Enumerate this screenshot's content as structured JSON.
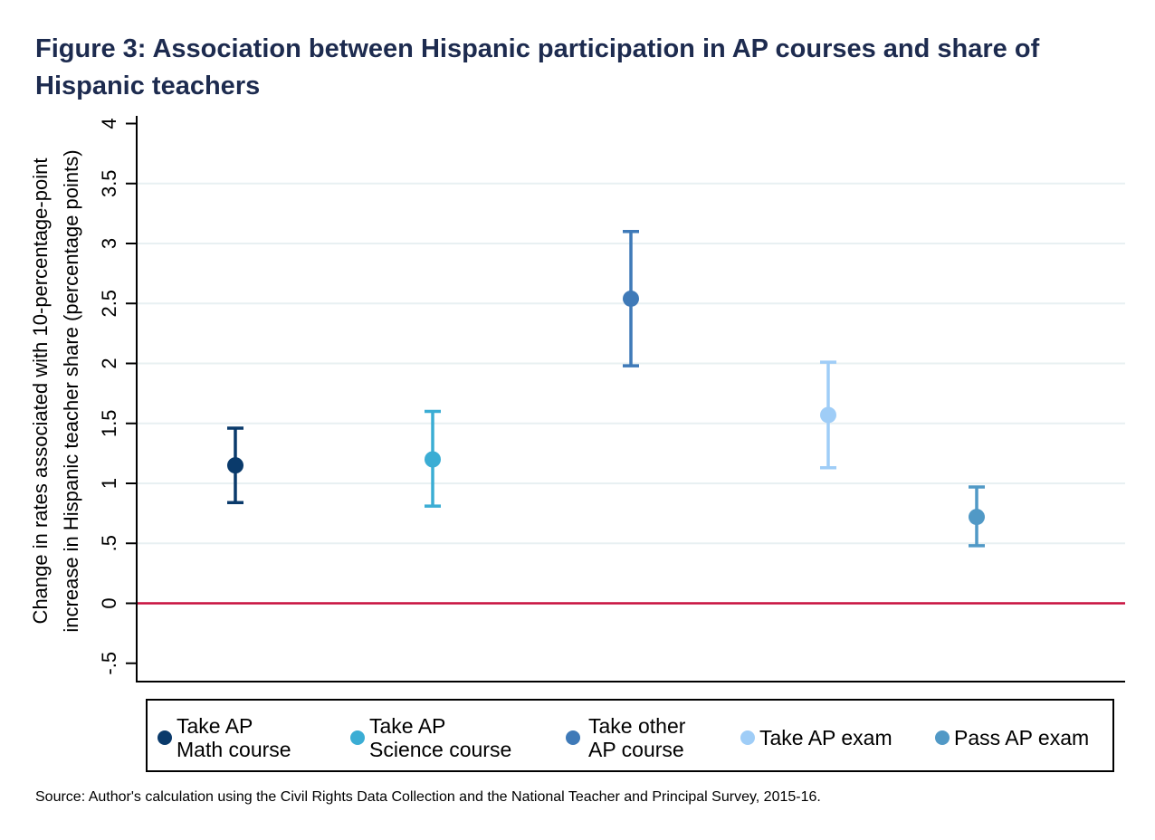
{
  "title": "Figure 3: Association between Hispanic participation in AP courses and share of Hispanic teachers",
  "source": "Source: Author's calculation using the Civil Rights Data Collection and the National Teacher and Principal Survey, 2015-16.",
  "colors": {
    "title": "#1d2b4f",
    "zero_line": "#c8103e",
    "grid": "#e8f0f2"
  },
  "chart_data": {
    "type": "scatter",
    "subtype": "coefficient plot with 95% confidence intervals",
    "title": "Figure 3: Association between Hispanic participation in AP courses and share of Hispanic teachers",
    "xlabel": "",
    "ylabel_lines": [
      "Change in rates associated with 10-percentage-point",
      "increase in Hispanic teacher share (percentage points)"
    ],
    "ylim": [
      -0.5,
      4
    ],
    "yticks": [
      -0.5,
      0,
      0.5,
      1,
      1.5,
      2,
      2.5,
      3,
      3.5,
      4
    ],
    "ytick_labels": [
      "-.5",
      "0",
      ".5",
      "1",
      "1.5",
      "2",
      "2.5",
      "3",
      "3.5",
      "4"
    ],
    "grid": true,
    "reference_line": 0,
    "legend_position": "bottom",
    "series": [
      {
        "name": "Take AP Math course",
        "legend_lines": [
          "Take AP",
          "Math course"
        ],
        "color": "#0a3a6b",
        "estimate": 1.15,
        "ci_low": 0.84,
        "ci_high": 1.46
      },
      {
        "name": "Take AP Science course",
        "legend_lines": [
          "Take AP",
          "Science course"
        ],
        "color": "#3badd4",
        "estimate": 1.2,
        "ci_low": 0.81,
        "ci_high": 1.6
      },
      {
        "name": "Take other AP course",
        "legend_lines": [
          "Take other",
          "AP course"
        ],
        "color": "#3f7ab8",
        "estimate": 2.54,
        "ci_low": 1.98,
        "ci_high": 3.1
      },
      {
        "name": "Take AP exam",
        "legend_lines": [
          "Take AP exam"
        ],
        "color": "#9fcdf7",
        "estimate": 1.57,
        "ci_low": 1.13,
        "ci_high": 2.01
      },
      {
        "name": "Pass AP exam",
        "legend_lines": [
          "Pass AP exam"
        ],
        "color": "#5199c6",
        "estimate": 0.72,
        "ci_low": 0.48,
        "ci_high": 0.97
      }
    ]
  }
}
